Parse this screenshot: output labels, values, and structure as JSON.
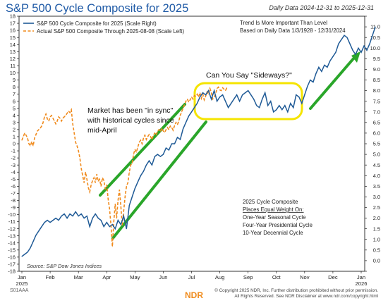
{
  "header": {
    "title": "S&P 500 Cycle Composite for 2025",
    "date_range": "Daily Data 2024-12-31 to 2025-12-31"
  },
  "legend": {
    "items": [
      {
        "label": "S&P 500 Cycle Composite for 2025 (Scale Right)",
        "color": "#1f5a96",
        "style": "solid"
      },
      {
        "label": "Actual S&P 500 Composite Through 2025-08-08 (Scale Left)",
        "color": "#f08a1c",
        "style": "dashed"
      }
    ]
  },
  "notes": {
    "trend_line1": "Trend Is More Important Than Level",
    "trend_line2": "Based on Daily Data 1/3/1928 - 12/31/2024",
    "sideways": "Can You Say \"Sideways?\"",
    "sync_line1": "Market has been \"in sync\"",
    "sync_line2": "with historical cycles since",
    "sync_line3": "mid-April",
    "composite_title": "2025 Cycle Composite",
    "composite_sub": "Places Equal Weight On:",
    "composite_item1": "One-Year Seasonal Cycle",
    "composite_item2": "Four-Year Presidential Cycle",
    "composite_item3": "10-Year Decennial Cycle",
    "source": "Source:   S&P Dow Jones Indices"
  },
  "footer": {
    "code": "S01AAA",
    "line1": "© Copyright 2025 NDR, Inc. Further distribution prohibited without prior permission.",
    "line2": "All Rights Reserved. See NDR Disclaimer at www.ndr.com/copyright.html",
    "logo": "NDR"
  },
  "chart_data": {
    "type": "line",
    "x_axis": {
      "tick_labels": [
        "Jan",
        "Feb",
        "Mar",
        "Apr",
        "May",
        "Jun",
        "Jul",
        "Aug",
        "Sep",
        "Oct",
        "Nov",
        "Dec",
        "Jan"
      ],
      "year_labels": [
        {
          "at": "Jan",
          "text": "2025"
        },
        {
          "at": "Jan-end",
          "text": "2026"
        }
      ],
      "range": [
        "2024-12-31",
        "2025-12-31"
      ]
    },
    "left_axis": {
      "min": -18,
      "max": 18,
      "step": 1
    },
    "right_axis": {
      "min": -0.5,
      "max": 11.5,
      "step": 0.5
    },
    "series": [
      {
        "name": "S&P 500 Cycle Composite for 2025 (Scale Right)",
        "axis": "right",
        "color": "#1f5a96",
        "points": [
          [
            0.0,
            0.2
          ],
          [
            0.1,
            0.3
          ],
          [
            0.2,
            0.4
          ],
          [
            0.3,
            0.6
          ],
          [
            0.4,
            0.9
          ],
          [
            0.5,
            1.2
          ],
          [
            0.6,
            1.4
          ],
          [
            0.7,
            1.6
          ],
          [
            0.8,
            1.8
          ],
          [
            0.9,
            1.9
          ],
          [
            1.0,
            1.8
          ],
          [
            1.1,
            1.9
          ],
          [
            1.2,
            2.0
          ],
          [
            1.3,
            1.9
          ],
          [
            1.4,
            2.1
          ],
          [
            1.5,
            2.2
          ],
          [
            1.6,
            2.0
          ],
          [
            1.7,
            2.2
          ],
          [
            1.8,
            2.1
          ],
          [
            1.9,
            2.3
          ],
          [
            2.0,
            2.1
          ],
          [
            2.1,
            2.2
          ],
          [
            2.2,
            2.0
          ],
          [
            2.3,
            2.1
          ],
          [
            2.4,
            1.6
          ],
          [
            2.5,
            2.0
          ],
          [
            2.6,
            2.2
          ],
          [
            2.7,
            2.0
          ],
          [
            2.8,
            1.9
          ],
          [
            2.9,
            1.6
          ],
          [
            3.0,
            1.8
          ],
          [
            3.1,
            1.6
          ],
          [
            3.2,
            1.7
          ],
          [
            3.3,
            1.5
          ],
          [
            3.4,
            1.9
          ],
          [
            3.5,
            1.7
          ],
          [
            3.6,
            2.1
          ],
          [
            3.7,
            1.5
          ],
          [
            3.8,
            2.6
          ],
          [
            3.9,
            3.0
          ],
          [
            4.0,
            3.4
          ],
          [
            4.1,
            3.7
          ],
          [
            4.2,
            4.0
          ],
          [
            4.3,
            4.2
          ],
          [
            4.4,
            4.5
          ],
          [
            4.5,
            4.7
          ],
          [
            4.6,
            4.5
          ],
          [
            4.7,
            4.9
          ],
          [
            4.8,
            5.0
          ],
          [
            4.9,
            4.9
          ],
          [
            5.0,
            5.0
          ],
          [
            5.1,
            5.3
          ],
          [
            5.2,
            5.2
          ],
          [
            5.3,
            5.5
          ],
          [
            5.4,
            5.5
          ],
          [
            5.5,
            5.8
          ],
          [
            5.6,
            5.7
          ],
          [
            5.7,
            6.2
          ],
          [
            5.8,
            6.5
          ],
          [
            5.9,
            6.8
          ],
          [
            6.0,
            7.0
          ],
          [
            6.1,
            7.2
          ],
          [
            6.2,
            7.4
          ],
          [
            6.3,
            7.7
          ],
          [
            6.4,
            7.9
          ],
          [
            6.5,
            7.8
          ],
          [
            6.6,
            8.0
          ],
          [
            6.7,
            7.6
          ],
          [
            6.8,
            8.0
          ],
          [
            6.9,
            7.5
          ],
          [
            7.0,
            7.7
          ],
          [
            7.1,
            7.8
          ],
          [
            7.2,
            7.5
          ],
          [
            7.3,
            7.2
          ],
          [
            7.4,
            7.4
          ],
          [
            7.5,
            7.6
          ],
          [
            7.6,
            7.8
          ],
          [
            7.7,
            7.5
          ],
          [
            7.8,
            7.8
          ],
          [
            7.9,
            7.9
          ],
          [
            8.0,
            8.0
          ],
          [
            8.1,
            7.8
          ],
          [
            8.2,
            7.6
          ],
          [
            8.3,
            7.3
          ],
          [
            8.4,
            7.2
          ],
          [
            8.5,
            7.6
          ],
          [
            8.6,
            7.9
          ],
          [
            8.7,
            7.3
          ],
          [
            8.8,
            7.5
          ],
          [
            8.9,
            7.0
          ],
          [
            9.0,
            7.1
          ],
          [
            9.1,
            7.3
          ],
          [
            9.2,
            7.1
          ],
          [
            9.3,
            7.3
          ],
          [
            9.4,
            7.0
          ],
          [
            9.5,
            7.4
          ],
          [
            9.6,
            7.2
          ],
          [
            9.7,
            7.8
          ],
          [
            9.8,
            7.7
          ],
          [
            9.9,
            7.4
          ],
          [
            10.0,
            7.8
          ],
          [
            10.1,
            8.2
          ],
          [
            10.2,
            8.5
          ],
          [
            10.3,
            8.4
          ],
          [
            10.4,
            8.8
          ],
          [
            10.5,
            9.1
          ],
          [
            10.6,
            8.9
          ],
          [
            10.7,
            9.2
          ],
          [
            10.8,
            9.1
          ],
          [
            10.9,
            9.4
          ],
          [
            11.0,
            9.6
          ],
          [
            11.1,
            9.8
          ],
          [
            11.2,
            10.2
          ],
          [
            11.3,
            10.4
          ],
          [
            11.4,
            10.6
          ],
          [
            11.5,
            10.5
          ],
          [
            11.6,
            10.2
          ],
          [
            11.7,
            9.9
          ],
          [
            11.8,
            9.7
          ],
          [
            11.9,
            10.0
          ],
          [
            12.0,
            9.8
          ],
          [
            12.1,
            10.1
          ],
          [
            12.2,
            9.9
          ],
          [
            12.3,
            10.2
          ],
          [
            12.4,
            10.6
          ],
          [
            12.5,
            11.0
          ]
        ]
      },
      {
        "name": "Actual S&P 500 Composite Through 2025-08-08 (Scale Left)",
        "axis": "left",
        "color": "#f08a1c",
        "points": [
          [
            0.0,
            0.5
          ],
          [
            0.05,
            1.0
          ],
          [
            0.1,
            1.5
          ],
          [
            0.15,
            1.2
          ],
          [
            0.2,
            0.8
          ],
          [
            0.25,
            0.0
          ],
          [
            0.3,
            -0.3
          ],
          [
            0.35,
            0.3
          ],
          [
            0.4,
            -0.3
          ],
          [
            0.45,
            0.8
          ],
          [
            0.5,
            1.3
          ],
          [
            0.55,
            1.8
          ],
          [
            0.6,
            2.0
          ],
          [
            0.65,
            2.2
          ],
          [
            0.7,
            2.5
          ],
          [
            0.75,
            3.0
          ],
          [
            0.8,
            3.8
          ],
          [
            0.85,
            4.2
          ],
          [
            0.9,
            3.5
          ],
          [
            0.95,
            3.2
          ],
          [
            1.0,
            3.8
          ],
          [
            1.05,
            4.0
          ],
          [
            1.1,
            3.6
          ],
          [
            1.15,
            3.2
          ],
          [
            1.2,
            2.8
          ],
          [
            1.25,
            3.2
          ],
          [
            1.3,
            3.8
          ],
          [
            1.35,
            3.6
          ],
          [
            1.4,
            3.2
          ],
          [
            1.45,
            3.6
          ],
          [
            1.5,
            3.8
          ],
          [
            1.55,
            4.0
          ],
          [
            1.6,
            4.3
          ],
          [
            1.65,
            4.6
          ],
          [
            1.7,
            4.4
          ],
          [
            1.75,
            4.8
          ],
          [
            1.8,
            2.8
          ],
          [
            1.85,
            1.5
          ],
          [
            1.9,
            0.2
          ],
          [
            1.95,
            -0.3
          ],
          [
            2.0,
            -1.0
          ],
          [
            2.05,
            -2.0
          ],
          [
            2.1,
            -3.5
          ],
          [
            2.15,
            -4.5
          ],
          [
            2.2,
            -5.5
          ],
          [
            2.25,
            -4.0
          ],
          [
            2.3,
            -5.0
          ],
          [
            2.35,
            -6.2
          ],
          [
            2.4,
            -6.8
          ],
          [
            2.45,
            -5.8
          ],
          [
            2.5,
            -5.2
          ],
          [
            2.55,
            -4.8
          ],
          [
            2.6,
            -5.5
          ],
          [
            2.65,
            -4.3
          ],
          [
            2.7,
            -5.3
          ],
          [
            2.75,
            -5.0
          ],
          [
            2.8,
            -6.0
          ],
          [
            2.85,
            -4.8
          ],
          [
            2.9,
            -5.2
          ],
          [
            2.95,
            -6.3
          ],
          [
            3.0,
            -5.8
          ],
          [
            3.05,
            -7.8
          ],
          [
            3.1,
            -9.2
          ],
          [
            3.15,
            -11.5
          ],
          [
            3.2,
            -14.5
          ],
          [
            3.25,
            -11.0
          ],
          [
            3.3,
            -8.5
          ],
          [
            3.35,
            -10.5
          ],
          [
            3.4,
            -8.0
          ],
          [
            3.45,
            -6.5
          ],
          [
            3.5,
            -8.8
          ],
          [
            3.55,
            -11.5
          ],
          [
            3.6,
            -9.5
          ],
          [
            3.65,
            -7.5
          ],
          [
            3.7,
            -6.0
          ],
          [
            3.75,
            -5.5
          ],
          [
            3.8,
            -4.0
          ],
          [
            3.85,
            -3.0
          ],
          [
            3.9,
            -2.8
          ],
          [
            3.95,
            -1.5
          ],
          [
            4.0,
            -0.8
          ],
          [
            4.05,
            -1.2
          ],
          [
            4.1,
            -0.5
          ],
          [
            4.15,
            0.2
          ],
          [
            4.2,
            0.5
          ],
          [
            4.25,
            0.0
          ],
          [
            4.3,
            0.8
          ],
          [
            4.35,
            1.2
          ],
          [
            4.4,
            0.6
          ],
          [
            4.45,
            1.0
          ],
          [
            4.5,
            1.3
          ],
          [
            4.55,
            1.0
          ],
          [
            4.6,
            0.6
          ],
          [
            4.65,
            1.2
          ],
          [
            4.7,
            1.5
          ],
          [
            4.75,
            1.2
          ],
          [
            4.8,
            1.8
          ],
          [
            4.85,
            2.0
          ],
          [
            4.9,
            1.7
          ],
          [
            4.95,
            2.2
          ],
          [
            5.0,
            1.8
          ],
          [
            5.05,
            1.6
          ],
          [
            5.1,
            2.0
          ],
          [
            5.15,
            2.3
          ],
          [
            5.2,
            2.0
          ],
          [
            5.25,
            2.5
          ],
          [
            5.3,
            2.3
          ],
          [
            5.35,
            1.9
          ],
          [
            5.4,
            2.6
          ],
          [
            5.45,
            3.0
          ],
          [
            5.5,
            2.7
          ],
          [
            5.55,
            3.2
          ],
          [
            5.6,
            4.0
          ],
          [
            5.65,
            4.5
          ],
          [
            5.7,
            5.0
          ],
          [
            5.75,
            5.5
          ],
          [
            5.8,
            6.0
          ],
          [
            5.85,
            6.3
          ],
          [
            5.9,
            5.9
          ],
          [
            5.95,
            6.2
          ],
          [
            6.0,
            6.6
          ],
          [
            6.05,
            6.3
          ],
          [
            6.1,
            6.8
          ],
          [
            6.15,
            6.7
          ],
          [
            6.2,
            7.0
          ],
          [
            6.25,
            6.6
          ],
          [
            6.3,
            7.2
          ],
          [
            6.35,
            6.4
          ],
          [
            6.4,
            7.0
          ],
          [
            6.45,
            6.2
          ],
          [
            6.5,
            6.7
          ],
          [
            6.55,
            7.3
          ],
          [
            6.6,
            7.0
          ],
          [
            6.65,
            7.8
          ],
          [
            6.7,
            7.2
          ],
          [
            6.75,
            6.3
          ],
          [
            6.8,
            6.6
          ],
          [
            6.85,
            7.0
          ],
          [
            6.9,
            7.8
          ],
          [
            6.95,
            8.0
          ],
          [
            7.0,
            7.6
          ],
          [
            7.05,
            7.5
          ],
          [
            7.1,
            7.9
          ],
          [
            7.15,
            7.7
          ],
          [
            7.2,
            7.5
          ],
          [
            7.25,
            7.9
          ]
        ]
      }
    ]
  }
}
